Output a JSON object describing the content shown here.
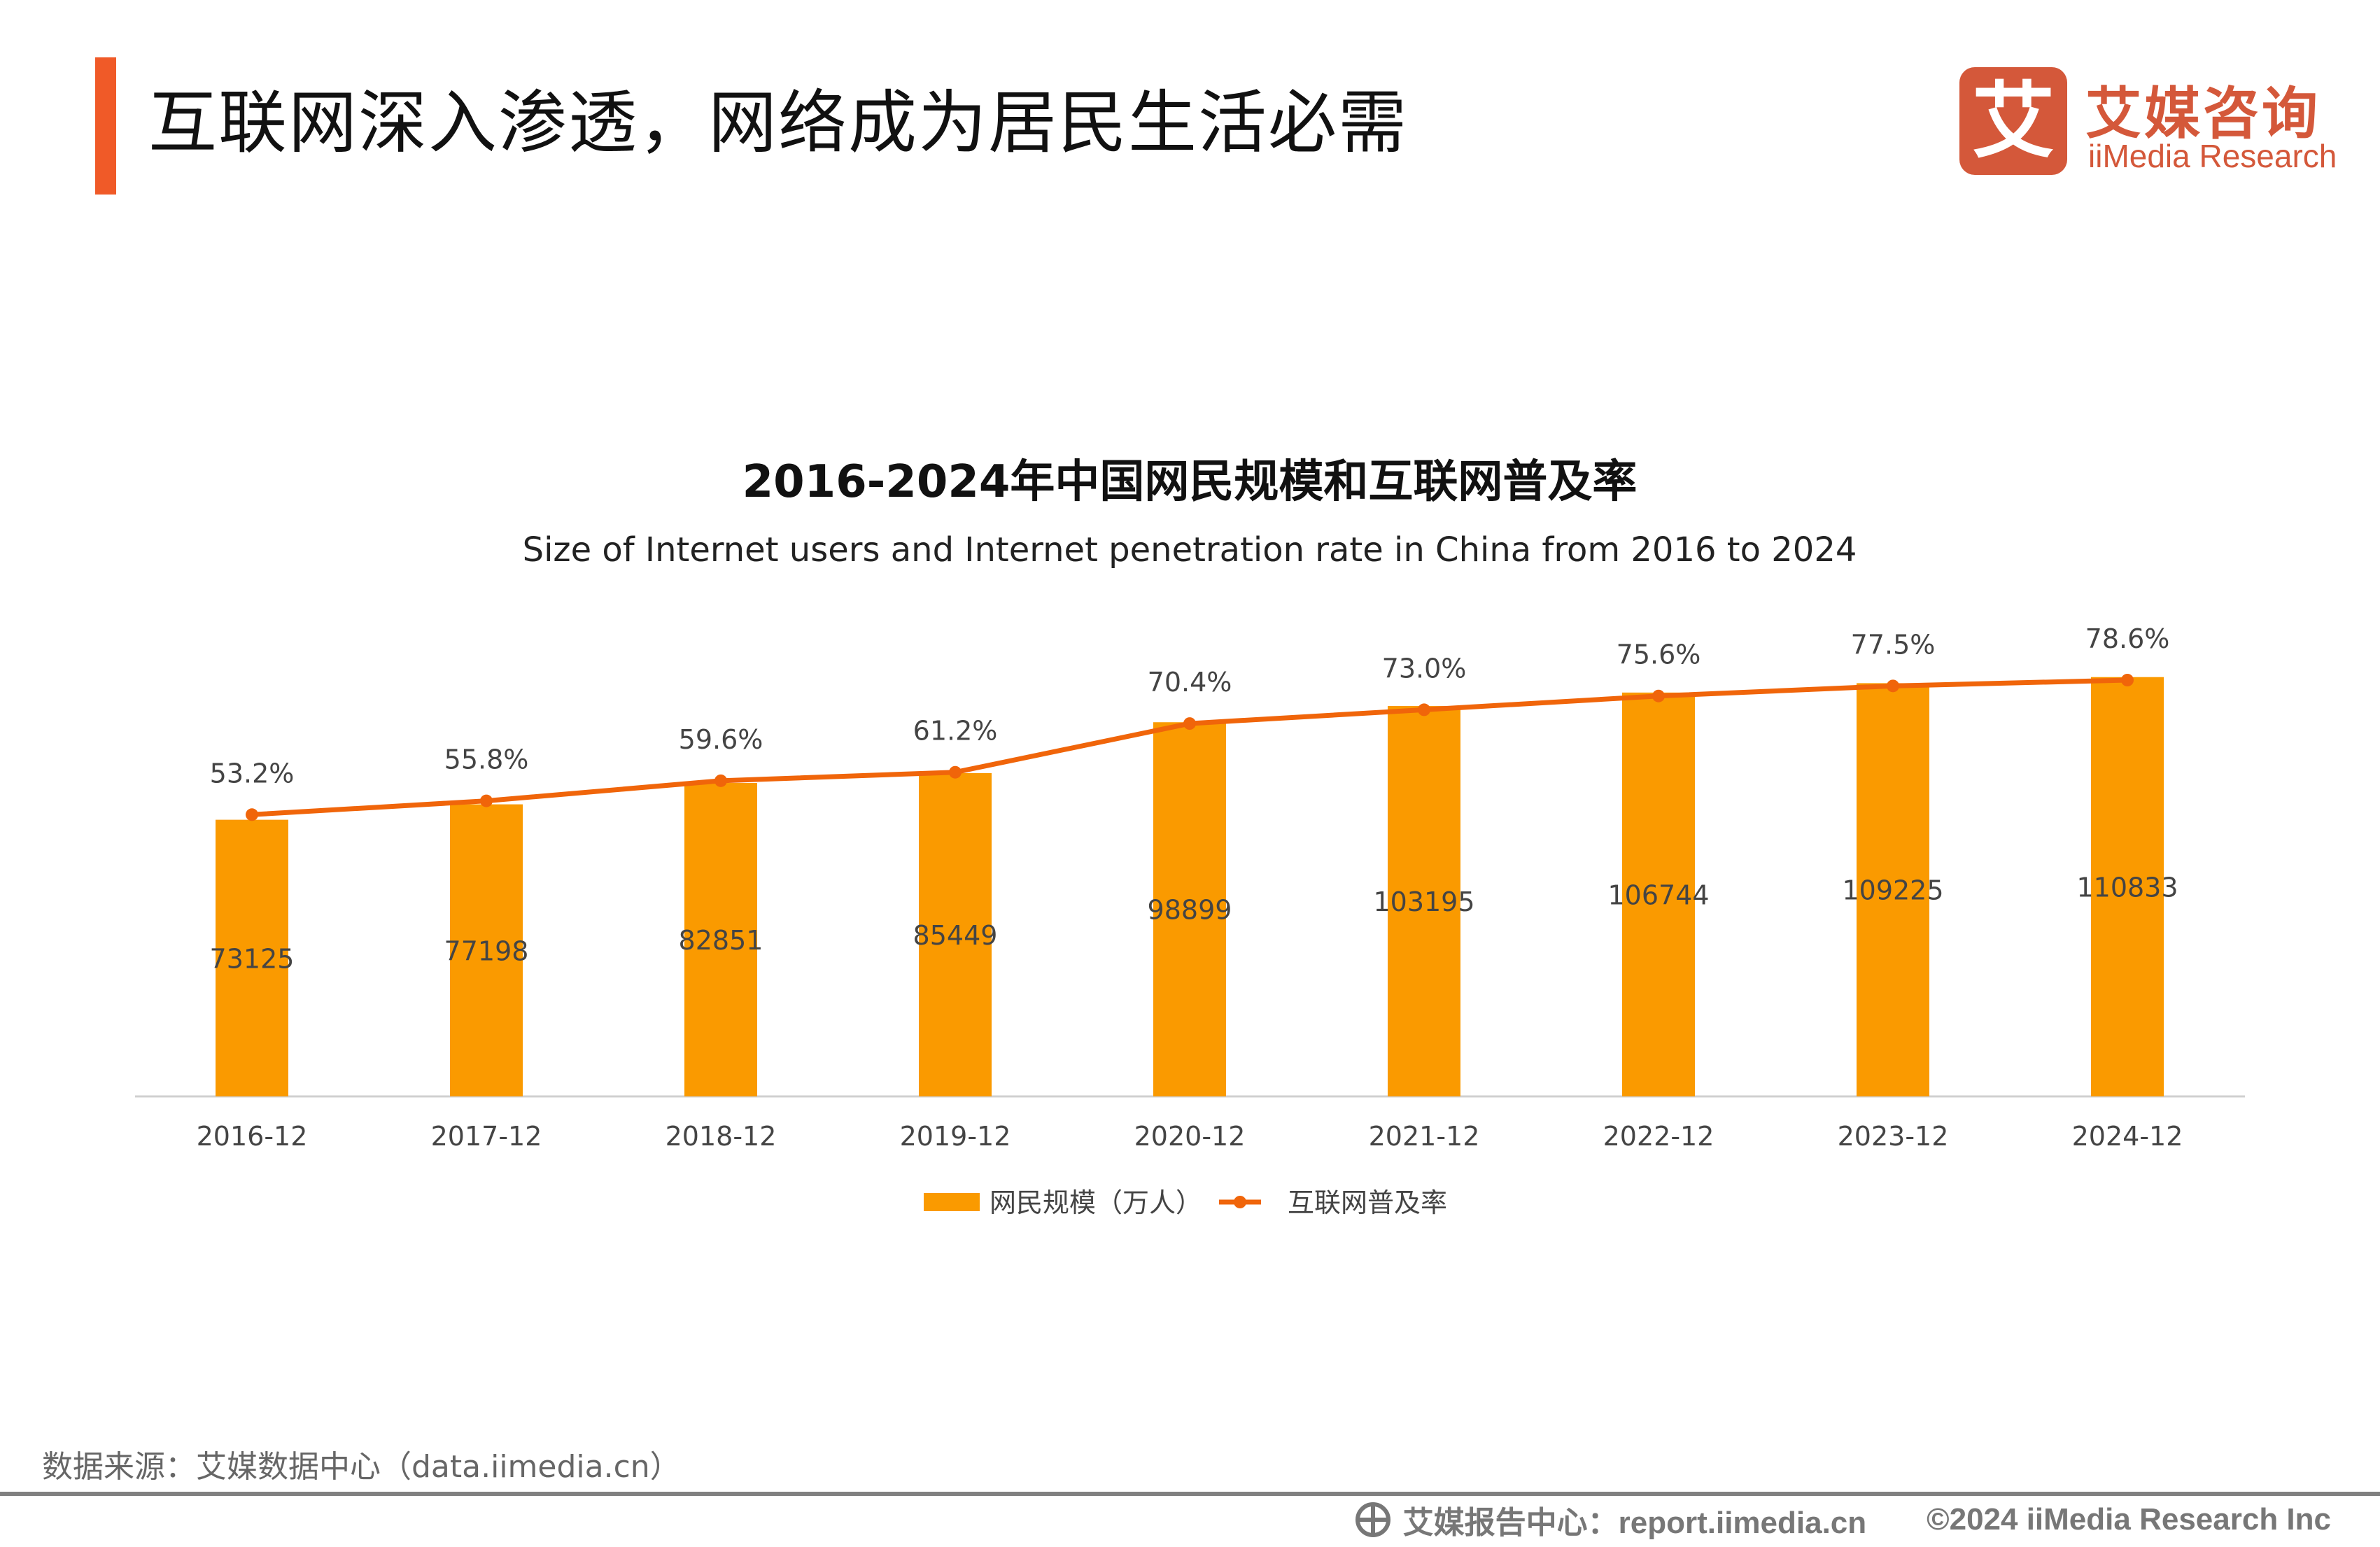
{
  "header": {
    "title": "互联网深入渗透，网络成为居民生活必需",
    "accent_color": "#f05a28"
  },
  "logo": {
    "mark": "艾",
    "name_cn": "艾媒咨询",
    "name_en": "iiMedia Research",
    "color": "#d4583a"
  },
  "chart_data": {
    "type": "bar+line",
    "title": "2016-2024年中国网民规模和互联网普及率",
    "subtitle": "Size of Internet users and Internet penetration rate in China from 2016 to 2024",
    "categories": [
      "2016-12",
      "2017-12",
      "2018-12",
      "2019-12",
      "2020-12",
      "2021-12",
      "2022-12",
      "2023-12",
      "2024-12"
    ],
    "series": [
      {
        "name": "网民规模（万人）",
        "type": "bar",
        "color": "#fa9a00",
        "values": [
          73125,
          77198,
          82851,
          85449,
          98899,
          103195,
          106744,
          109225,
          110833
        ],
        "value_labels": [
          "73125",
          "77198",
          "82851",
          "85449",
          "98899",
          "103195",
          "106744",
          "109225",
          "110833"
        ]
      },
      {
        "name": "互联网普及率",
        "type": "line",
        "color": "#f0650a",
        "values": [
          53.2,
          55.8,
          59.6,
          61.2,
          70.4,
          73.0,
          75.6,
          77.5,
          78.6
        ],
        "value_labels": [
          "53.2%",
          "55.8%",
          "59.6%",
          "61.2%",
          "70.4%",
          "73.0%",
          "75.6%",
          "77.5%",
          "78.6%"
        ]
      }
    ],
    "bar_axis_range": [
      0,
      140000
    ],
    "line_axis_range": [
      0,
      100
    ],
    "grid": false,
    "legend_position": "bottom"
  },
  "footer": {
    "source": "数据来源：艾媒数据中心（data.iimedia.cn）",
    "report_center": "艾媒报告中心：report.iimedia.cn",
    "copyright": "©2024  iiMedia Research  Inc"
  }
}
